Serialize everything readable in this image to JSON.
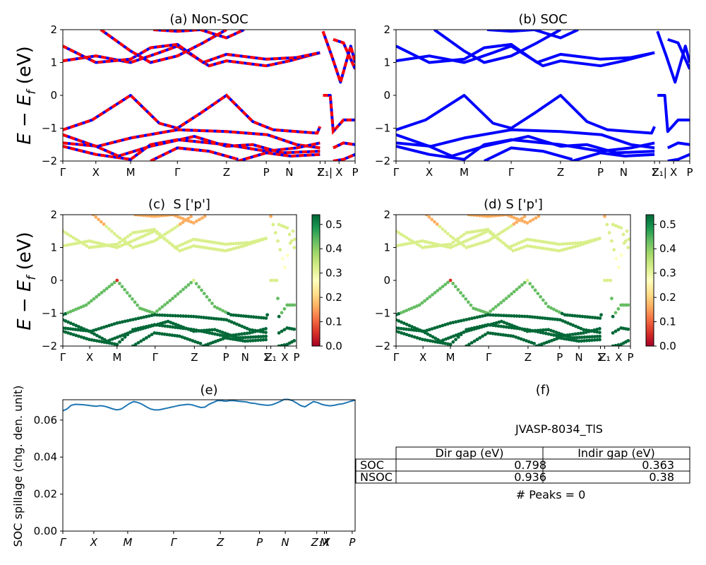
{
  "chart_data": [
    {
      "id": "a",
      "type": "line",
      "title": "(a) Non-SOC",
      "ylabel": "E − E_f (eV)",
      "ylim": [
        -2,
        2
      ],
      "yticks": [
        -2,
        -1,
        0,
        1,
        2
      ],
      "xticks": [
        "Γ",
        "X",
        "M",
        "Γ",
        "Z",
        "P",
        "N",
        "Σ",
        "Z₁|",
        "X",
        "P"
      ],
      "series_colors": [
        "#0000ff",
        "#ff0000"
      ],
      "style": "blue solid bands overlaid by red dashed bands",
      "bands_visible": "valence maximum 0 eV at M and Z; conduction bands between ~0.9 and 2 eV"
    },
    {
      "id": "b",
      "type": "line",
      "title": "(b) SOC",
      "ylim": [
        -2,
        2
      ],
      "yticks": [
        -2,
        -1,
        0,
        1,
        2
      ],
      "xticks": [
        "Γ",
        "X",
        "M",
        "Γ",
        "Z",
        "P",
        "N",
        "Σ",
        "Z₁|",
        "X",
        "P"
      ],
      "series_colors": [
        "#0000ff"
      ]
    },
    {
      "id": "c",
      "type": "scatter",
      "title": "(c)  S ['p']",
      "ylabel": "E − E_f (eV)",
      "ylim": [
        -2,
        2
      ],
      "yticks": [
        -2,
        -1,
        0,
        1,
        2
      ],
      "xticks": [
        "Γ",
        "X",
        "M",
        "Γ",
        "Z",
        "P",
        "N",
        "Σ",
        "Z₁",
        "X",
        "P"
      ],
      "colorbar": {
        "colormap": "RdYlGn",
        "range": [
          0.0,
          0.54
        ],
        "ticks": [
          "0.0",
          "0.1",
          "0.2",
          "0.3",
          "0.4",
          "0.5"
        ]
      }
    },
    {
      "id": "d",
      "type": "scatter",
      "title": "(d) S ['p']",
      "ylim": [
        -2,
        2
      ],
      "yticks": [
        -2,
        -1,
        0,
        1,
        2
      ],
      "xticks": [
        "Γ",
        "X",
        "M",
        "Γ",
        "Z",
        "P",
        "N",
        "Σ",
        "Z₁",
        "X",
        "P"
      ],
      "colorbar": {
        "colormap": "RdYlGn",
        "range": [
          0.0,
          0.54
        ],
        "ticks": [
          "0.0",
          "0.1",
          "0.2",
          "0.3",
          "0.4",
          "0.5"
        ]
      }
    },
    {
      "id": "e",
      "type": "line",
      "title": "(e)",
      "ylabel": "SOC spillage (chg. den. unit)",
      "ylim": [
        0.0,
        0.071
      ],
      "yticks": [
        "0.00",
        "0.02",
        "0.04",
        "0.06"
      ],
      "xticks": [
        "Γ",
        "X",
        "M",
        "Γ",
        "Z",
        "P",
        "N",
        "Z₁",
        "M",
        "X",
        "P"
      ],
      "series": [
        {
          "color": "#1f77b4",
          "values": [
            0.065,
            0.066,
            0.068,
            0.0685,
            0.0684,
            0.0683,
            0.068,
            0.0677,
            0.0675,
            0.0678,
            0.0675,
            0.0668,
            0.066,
            0.0655,
            0.066,
            0.0675,
            0.069,
            0.07,
            0.0695,
            0.0685,
            0.0672,
            0.066,
            0.0655,
            0.0655,
            0.066,
            0.0665,
            0.067,
            0.0675,
            0.068,
            0.0683,
            0.0685,
            0.0682,
            0.0675,
            0.0668,
            0.067,
            0.0685,
            0.0695,
            0.0705,
            0.0705,
            0.0702,
            0.0705,
            0.0705,
            0.0702,
            0.07,
            0.0698,
            0.0692,
            0.069,
            0.0685,
            0.0682,
            0.068,
            0.0682,
            0.069,
            0.07,
            0.0712,
            0.0712,
            0.0705,
            0.0692,
            0.0678,
            0.0672,
            0.0686,
            0.07,
            0.0695,
            0.0685,
            0.068,
            0.0677,
            0.068,
            0.0685,
            0.0688,
            0.0695,
            0.0702,
            0.0708
          ]
        }
      ]
    }
  ],
  "panel_f": {
    "title": "(f)",
    "subtitle": "JVASP-8034_TlS",
    "table": {
      "headers": [
        "Dir gap (eV)",
        "Indir gap (eV)"
      ],
      "rows": [
        {
          "label": "SOC",
          "dir": "0.798",
          "indir": "0.363"
        },
        {
          "label": "NSOC",
          "dir": "0.936",
          "indir": "0.38"
        }
      ]
    },
    "peaks": "# Peaks = 0"
  }
}
